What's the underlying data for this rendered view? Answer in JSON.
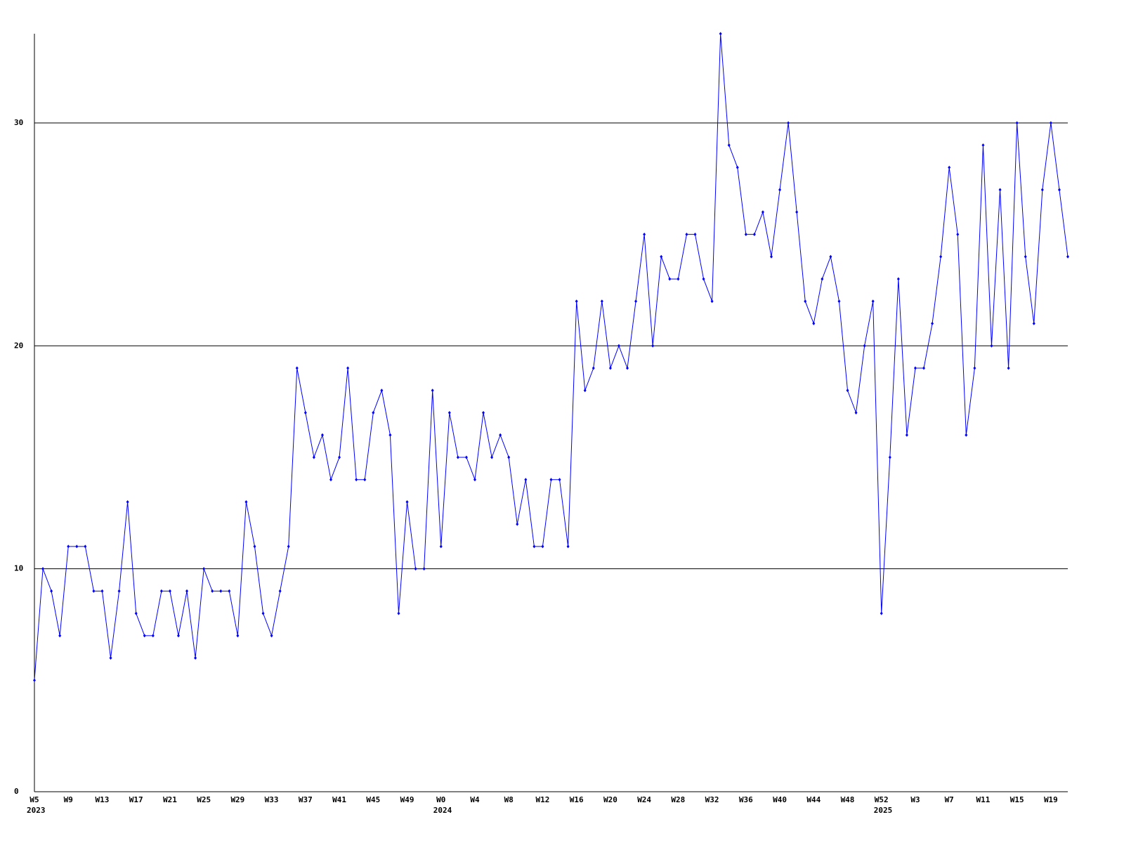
{
  "chart_data": {
    "type": "line",
    "categories": [
      "W5",
      null,
      null,
      null,
      "W9",
      null,
      null,
      null,
      "W13",
      null,
      null,
      null,
      "W17",
      null,
      null,
      null,
      "W21",
      null,
      null,
      null,
      "W25",
      null,
      null,
      null,
      "W29",
      null,
      null,
      null,
      "W33",
      null,
      null,
      null,
      "W37",
      null,
      null,
      null,
      "W41",
      null,
      null,
      null,
      "W45",
      null,
      null,
      null,
      "W49",
      null,
      null,
      null,
      "W0",
      null,
      null,
      null,
      "W4",
      null,
      null,
      null,
      "W8",
      null,
      null,
      null,
      "W12",
      null,
      null,
      null,
      "W16",
      null,
      null,
      null,
      "W20",
      null,
      null,
      null,
      "W24",
      null,
      null,
      null,
      "W28",
      null,
      null,
      null,
      "W32",
      null,
      null,
      null,
      "W36",
      null,
      null,
      null,
      "W40",
      null,
      null,
      null,
      "W44",
      null,
      null,
      null,
      "W48",
      null,
      null,
      null,
      "W52",
      null,
      null,
      null,
      "W3",
      null,
      null,
      null,
      "W7",
      null,
      null,
      null,
      "W11",
      null,
      null,
      null,
      "W15",
      null,
      null,
      null,
      "W19",
      null,
      null
    ],
    "years": [
      "2023",
      null,
      null,
      null,
      null,
      null,
      null,
      null,
      null,
      null,
      null,
      null,
      null,
      null,
      null,
      null,
      null,
      null,
      null,
      null,
      null,
      null,
      null,
      null,
      null,
      null,
      null,
      null,
      null,
      null,
      null,
      null,
      null,
      null,
      null,
      null,
      null,
      null,
      null,
      null,
      null,
      null,
      null,
      null,
      null,
      null,
      null,
      null,
      "2024",
      null,
      null,
      null,
      null,
      null,
      null,
      null,
      null,
      null,
      null,
      null,
      null,
      null,
      null,
      null,
      null,
      null,
      null,
      null,
      null,
      null,
      null,
      null,
      null,
      null,
      null,
      null,
      null,
      null,
      null,
      null,
      null,
      null,
      null,
      null,
      null,
      null,
      null,
      null,
      null,
      null,
      null,
      null,
      null,
      null,
      null,
      null,
      null,
      null,
      null,
      null,
      "2025",
      null,
      null,
      null,
      null,
      null,
      null,
      null,
      null,
      null,
      null,
      null,
      null,
      null,
      null,
      null,
      null,
      null,
      null,
      null,
      null
    ],
    "series": [
      {
        "color": "#0000ff",
        "values": [
          5,
          10,
          9,
          7,
          11,
          11,
          11,
          9,
          9,
          6,
          9,
          13,
          8,
          7,
          7,
          9,
          9,
          7,
          9,
          6,
          10,
          9,
          9,
          9,
          7,
          13,
          11,
          8,
          7,
          9,
          11,
          19,
          17,
          15,
          16,
          14,
          15,
          19,
          14,
          14,
          17,
          18,
          16,
          8,
          13,
          10,
          10,
          18,
          11,
          17,
          15,
          15,
          14,
          17,
          15,
          16,
          15,
          12,
          14,
          11,
          11,
          14,
          14,
          11,
          22,
          18,
          19,
          22,
          19,
          20,
          19,
          22,
          25,
          20,
          24,
          23,
          23,
          25,
          25,
          23,
          22,
          34,
          29,
          28,
          25,
          25,
          26,
          24,
          27,
          30,
          26,
          22,
          21,
          23,
          24,
          22,
          18,
          17,
          20,
          22,
          8,
          15,
          23,
          16,
          19,
          19,
          21,
          24,
          28,
          25,
          16,
          19,
          29,
          20,
          27,
          19,
          30,
          24,
          21,
          27,
          30,
          27,
          24
        ]
      }
    ],
    "ylim": [
      0,
      34
    ],
    "yticks": [
      0,
      10,
      20,
      30
    ],
    "grid": true
  }
}
